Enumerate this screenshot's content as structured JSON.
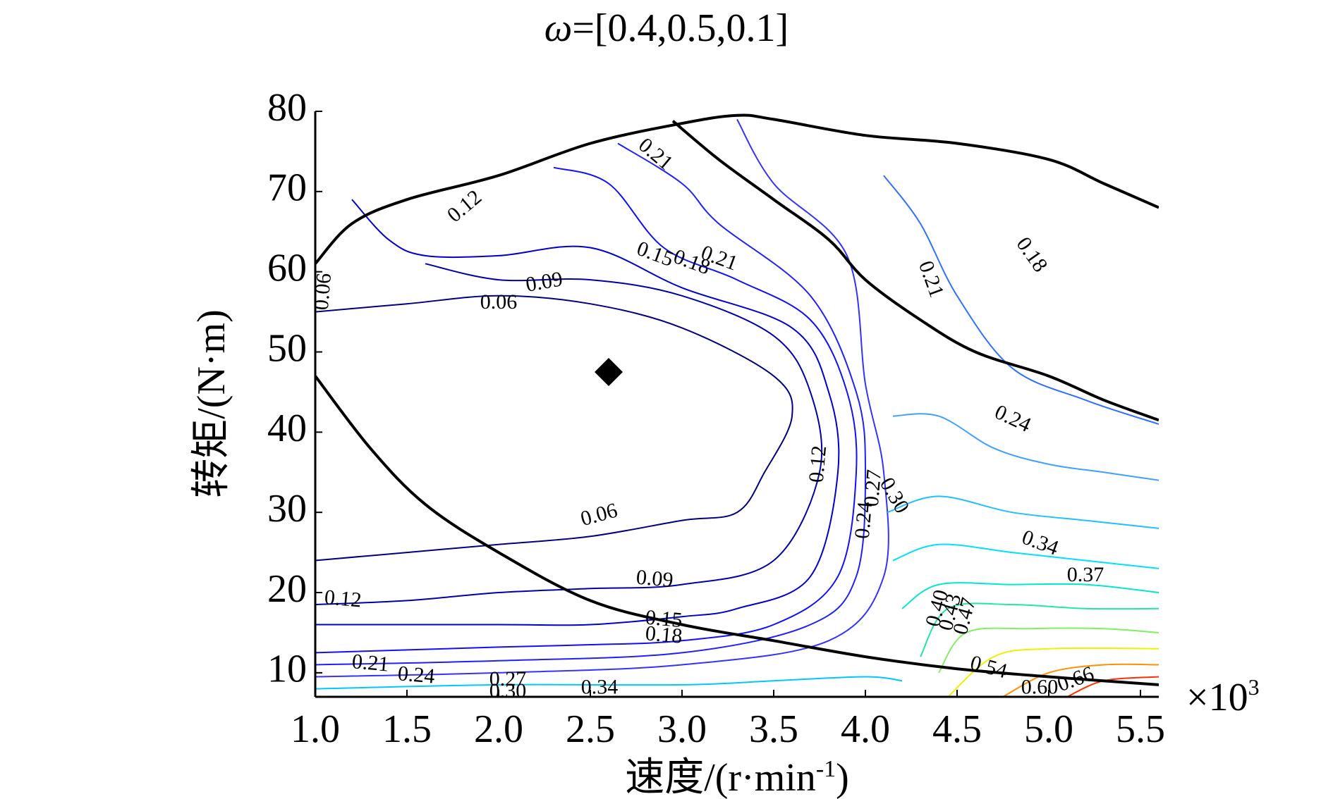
{
  "chart_data": {
    "type": "contour",
    "title_symbol": "ω",
    "title_value": "=[0.4,0.5,0.1]",
    "xlabel": "速度/(r·min",
    "xlabel_sup": "-1",
    "xlabel_end": ")",
    "ylabel": "转矩/(N·m)",
    "x_multiplier": "×10",
    "x_multiplier_sup": "3",
    "xlim": [
      1.0,
      5.6
    ],
    "ylim": [
      7,
      80
    ],
    "x_ticks": [
      "1.0",
      "1.5",
      "2.0",
      "2.5",
      "3.0",
      "3.5",
      "4.0",
      "4.5",
      "5.0",
      "5.5"
    ],
    "x_tick_values": [
      1.0,
      1.5,
      2.0,
      2.5,
      3.0,
      3.5,
      4.0,
      4.5,
      5.0,
      5.5
    ],
    "y_ticks": [
      "10",
      "20",
      "30",
      "40",
      "50",
      "60",
      "70",
      "80"
    ],
    "y_tick_values": [
      10,
      20,
      30,
      40,
      50,
      60,
      70,
      80
    ],
    "marker": {
      "shape": "diamond",
      "x": 2.6,
      "y": 47.5,
      "color": "#000000"
    },
    "boundaries": [
      {
        "name": "max-torque-envelope",
        "color": "#000000",
        "points": [
          [
            1.0,
            61
          ],
          [
            1.2,
            66
          ],
          [
            1.5,
            69
          ],
          [
            2.0,
            72
          ],
          [
            2.5,
            76
          ],
          [
            3.0,
            78.5
          ],
          [
            3.3,
            79.5
          ],
          [
            3.5,
            79
          ],
          [
            4.0,
            77
          ],
          [
            4.5,
            76
          ],
          [
            5.0,
            74
          ],
          [
            5.3,
            71
          ],
          [
            5.6,
            68
          ]
        ]
      },
      {
        "name": "boundary-upper",
        "color": "#000000",
        "points": [
          [
            2.95,
            78.8
          ],
          [
            3.2,
            74
          ],
          [
            3.5,
            69
          ],
          [
            3.8,
            64
          ],
          [
            4.0,
            59
          ],
          [
            4.3,
            54
          ],
          [
            4.6,
            50
          ],
          [
            5.0,
            47
          ],
          [
            5.3,
            44
          ],
          [
            5.6,
            41.5
          ]
        ]
      },
      {
        "name": "boundary-lower",
        "color": "#000000",
        "points": [
          [
            1.0,
            47
          ],
          [
            1.3,
            38
          ],
          [
            1.6,
            31
          ],
          [
            2.0,
            25
          ],
          [
            2.5,
            19
          ],
          [
            3.0,
            16
          ],
          [
            3.5,
            14
          ],
          [
            4.0,
            12
          ],
          [
            4.5,
            10.5
          ],
          [
            5.0,
            9.5
          ],
          [
            5.6,
            8.5
          ]
        ]
      }
    ],
    "contours": [
      {
        "level": "0.06",
        "color": "#000080",
        "points": [
          [
            1.0,
            55
          ],
          [
            1.5,
            56
          ],
          [
            2.0,
            57
          ],
          [
            2.5,
            56
          ],
          [
            3.0,
            53
          ],
          [
            3.5,
            47
          ],
          [
            3.6,
            42
          ],
          [
            3.45,
            35
          ],
          [
            3.3,
            30
          ],
          [
            3.0,
            29
          ],
          [
            2.5,
            27
          ],
          [
            2.0,
            26
          ],
          [
            1.5,
            25
          ],
          [
            1.0,
            24
          ]
        ]
      },
      {
        "level": "0.09",
        "color": "#0000aa",
        "points": [
          [
            1.6,
            61
          ],
          [
            2.0,
            59
          ],
          [
            2.5,
            59
          ],
          [
            3.0,
            57
          ],
          [
            3.5,
            52
          ],
          [
            3.7,
            45
          ],
          [
            3.75,
            35
          ],
          [
            3.5,
            24
          ],
          [
            3.0,
            21
          ],
          [
            2.5,
            20.5
          ],
          [
            2.0,
            20
          ],
          [
            1.5,
            19
          ],
          [
            1.0,
            18.5
          ]
        ]
      },
      {
        "level": "0.12",
        "color": "#0000d0",
        "points": [
          [
            1.2,
            69
          ],
          [
            1.4,
            64
          ],
          [
            1.6,
            62
          ],
          [
            2.0,
            62
          ],
          [
            2.5,
            63
          ],
          [
            3.0,
            58
          ],
          [
            3.6,
            53
          ],
          [
            3.8,
            45
          ],
          [
            3.85,
            35
          ],
          [
            3.7,
            22
          ],
          [
            3.3,
            18
          ],
          [
            3.0,
            17
          ],
          [
            2.5,
            16
          ],
          [
            2.0,
            16
          ],
          [
            1.0,
            16
          ]
        ]
      },
      {
        "level": "0.15",
        "color": "#1010ff",
        "points": [
          [
            2.3,
            73
          ],
          [
            2.6,
            71
          ],
          [
            2.9,
            63
          ],
          [
            3.3,
            59
          ],
          [
            3.7,
            54
          ],
          [
            3.9,
            45
          ],
          [
            3.95,
            35
          ],
          [
            3.85,
            22
          ],
          [
            3.5,
            16
          ],
          [
            3.0,
            14
          ],
          [
            2.5,
            13.5
          ],
          [
            2.0,
            13.2
          ],
          [
            1.0,
            12.5
          ]
        ]
      },
      {
        "level": "0.18",
        "color": "#2020ff",
        "points": [
          [
            2.65,
            76
          ],
          [
            3.0,
            71
          ],
          [
            3.2,
            66
          ],
          [
            3.7,
            57
          ],
          [
            3.95,
            45
          ],
          [
            4.0,
            35
          ],
          [
            3.95,
            22
          ],
          [
            3.7,
            16
          ],
          [
            3.0,
            12.5
          ],
          [
            2.0,
            11.5
          ],
          [
            1.0,
            11
          ]
        ]
      },
      {
        "level": "0.21",
        "color": "#3333ff",
        "points": [
          [
            3.3,
            79
          ],
          [
            3.5,
            71
          ],
          [
            3.9,
            62
          ],
          [
            4.0,
            46
          ],
          [
            4.1,
            35
          ],
          [
            4.1,
            22
          ],
          [
            3.8,
            14
          ],
          [
            3.0,
            11
          ],
          [
            2.0,
            10
          ],
          [
            1.0,
            9.5
          ]
        ]
      },
      {
        "level": "0.24",
        "color": "#3070ff",
        "points": [
          [
            4.1,
            72
          ],
          [
            4.3,
            66
          ],
          [
            4.5,
            57
          ],
          [
            4.8,
            48
          ],
          [
            5.2,
            44
          ],
          [
            5.6,
            41
          ]
        ]
      },
      {
        "level": "0.27",
        "color": "#40a0ff",
        "points": [
          [
            4.15,
            42
          ],
          [
            4.4,
            42
          ],
          [
            4.7,
            38
          ],
          [
            5.0,
            36
          ],
          [
            5.3,
            35
          ],
          [
            5.6,
            34
          ]
        ]
      },
      {
        "level": "0.30",
        "color": "#20c0ff",
        "points": [
          [
            4.12,
            30
          ],
          [
            4.4,
            32
          ],
          [
            4.8,
            30
          ],
          [
            5.2,
            29
          ],
          [
            5.6,
            28
          ]
        ]
      },
      {
        "level": "0.34",
        "color": "#00e0ff",
        "points": [
          [
            4.15,
            24
          ],
          [
            4.4,
            26
          ],
          [
            4.8,
            25
          ],
          [
            5.2,
            24
          ],
          [
            5.6,
            23
          ]
        ]
      },
      {
        "level": "0.37",
        "color": "#00e8d0",
        "points": [
          [
            4.2,
            18
          ],
          [
            4.4,
            21
          ],
          [
            4.8,
            21
          ],
          [
            5.2,
            21
          ],
          [
            5.6,
            20
          ]
        ]
      },
      {
        "level": "0.40",
        "color": "#20e8a0",
        "points": [
          [
            4.3,
            12
          ],
          [
            4.45,
            18
          ],
          [
            4.8,
            18.5
          ],
          [
            5.2,
            18
          ],
          [
            5.6,
            18
          ]
        ]
      },
      {
        "level": "0.47",
        "color": "#80f060",
        "points": [
          [
            4.4,
            10
          ],
          [
            4.55,
            15
          ],
          [
            4.9,
            15.5
          ],
          [
            5.3,
            15.5
          ],
          [
            5.6,
            15
          ]
        ]
      },
      {
        "level": "0.54",
        "color": "#f0f000",
        "points": [
          [
            4.45,
            7
          ],
          [
            4.7,
            12
          ],
          [
            5.0,
            13
          ],
          [
            5.6,
            13
          ]
        ]
      },
      {
        "level": "0.60",
        "color": "#ff9000",
        "points": [
          [
            4.75,
            7
          ],
          [
            5.0,
            10
          ],
          [
            5.3,
            11
          ],
          [
            5.6,
            11
          ]
        ]
      },
      {
        "level": "0.66",
        "color": "#ff3000",
        "points": [
          [
            5.1,
            7
          ],
          [
            5.3,
            9
          ],
          [
            5.6,
            9.5
          ]
        ]
      },
      {
        "level": "0.30-low",
        "color": "#00c8ff",
        "points": [
          [
            1.0,
            8
          ],
          [
            2.0,
            8.5
          ],
          [
            3.0,
            8.5
          ],
          [
            3.5,
            9
          ],
          [
            4.0,
            9.5
          ],
          [
            4.2,
            9
          ]
        ]
      }
    ],
    "contour_labels": [
      {
        "text": "0.12",
        "x": 1.82,
        "y": 68,
        "angle": -40
      },
      {
        "text": "0.21",
        "x": 2.85,
        "y": 74.5,
        "angle": 40
      },
      {
        "text": "0.15",
        "x": 2.85,
        "y": 62,
        "angle": 20
      },
      {
        "text": "0.18",
        "x": 3.05,
        "y": 61,
        "angle": 20
      },
      {
        "text": "0.21",
        "x": 3.2,
        "y": 61.5,
        "angle": 20
      },
      {
        "text": "0.09",
        "x": 2.25,
        "y": 58.5,
        "angle": -10
      },
      {
        "text": "0.06",
        "x": 2.0,
        "y": 56,
        "angle": 0
      },
      {
        "text": "0.06",
        "x": 1.05,
        "y": 57.5,
        "angle": -85
      },
      {
        "text": "0.18",
        "x": 4.9,
        "y": 62,
        "angle": 55
      },
      {
        "text": "0.21",
        "x": 4.35,
        "y": 59,
        "angle": 70
      },
      {
        "text": "0.24",
        "x": 4.8,
        "y": 41.5,
        "angle": 25
      },
      {
        "text": "0.12",
        "x": 3.75,
        "y": 36,
        "angle": -85
      },
      {
        "text": "0.06",
        "x": 2.55,
        "y": 29.5,
        "angle": -15
      },
      {
        "text": "0.09",
        "x": 2.85,
        "y": 21.5,
        "angle": 5
      },
      {
        "text": "0.12",
        "x": 1.15,
        "y": 19,
        "angle": 5
      },
      {
        "text": "0.15",
        "x": 2.9,
        "y": 16.5,
        "angle": 5
      },
      {
        "text": "0.18",
        "x": 2.9,
        "y": 14.5,
        "angle": 5
      },
      {
        "text": "0.34",
        "x": 4.95,
        "y": 26,
        "angle": 20
      },
      {
        "text": "0.37",
        "x": 5.2,
        "y": 22,
        "angle": 0
      },
      {
        "text": "0.27",
        "x": 4.05,
        "y": 33,
        "angle": -85
      },
      {
        "text": "0.30",
        "x": 4.15,
        "y": 32,
        "angle": 60
      },
      {
        "text": "0.24",
        "x": 4.0,
        "y": 29,
        "angle": -85
      },
      {
        "text": "0.40",
        "x": 4.4,
        "y": 18,
        "angle": -75
      },
      {
        "text": "0.43",
        "x": 4.47,
        "y": 17.5,
        "angle": -75
      },
      {
        "text": "0.47",
        "x": 4.55,
        "y": 17,
        "angle": -75
      },
      {
        "text": "0.54",
        "x": 4.67,
        "y": 10.5,
        "angle": 15
      },
      {
        "text": "0.60",
        "x": 4.95,
        "y": 8,
        "angle": 0
      },
      {
        "text": "0.66",
        "x": 5.15,
        "y": 9,
        "angle": -20
      },
      {
        "text": "0.21",
        "x": 1.3,
        "y": 11,
        "angle": 5
      },
      {
        "text": "0.24",
        "x": 1.55,
        "y": 9.5,
        "angle": 5
      },
      {
        "text": "0.27",
        "x": 2.05,
        "y": 9,
        "angle": 0
      },
      {
        "text": "0.30",
        "x": 2.05,
        "y": 7.5,
        "angle": 0
      },
      {
        "text": "0.34",
        "x": 2.55,
        "y": 8,
        "angle": 0
      }
    ]
  }
}
